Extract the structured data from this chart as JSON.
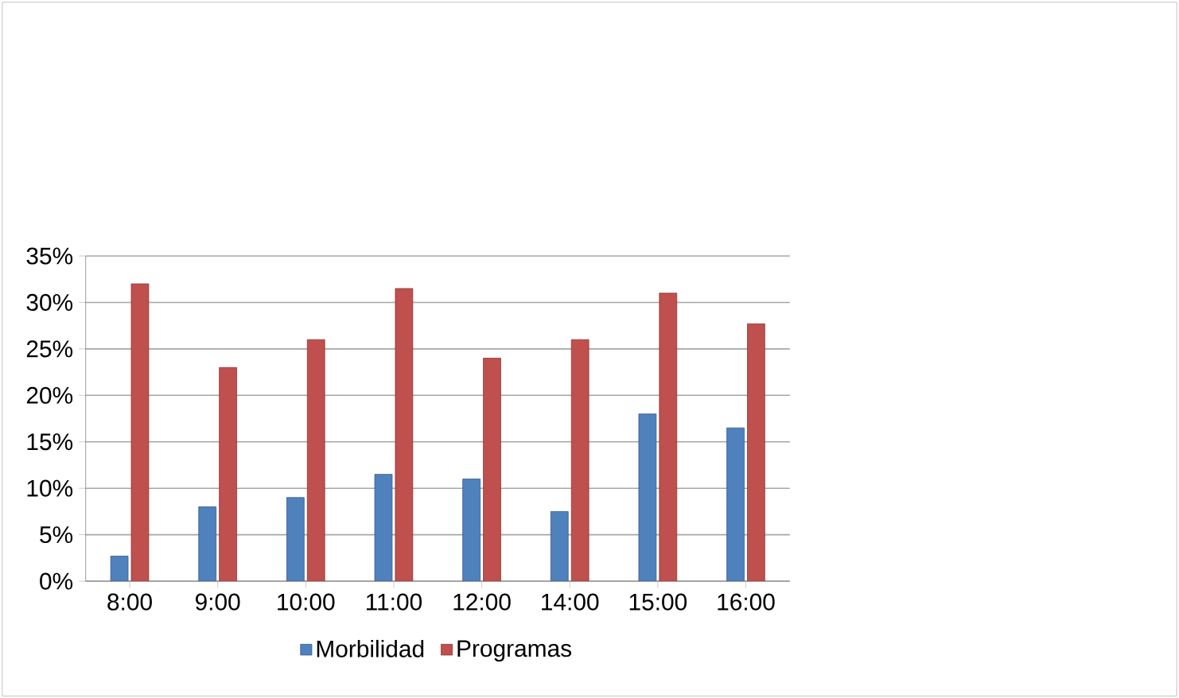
{
  "chart_data": {
    "type": "bar",
    "categories": [
      "8:00",
      "9:00",
      "10:00",
      "11:00",
      "12:00",
      "14:00",
      "15:00",
      "16:00"
    ],
    "series": [
      {
        "name": "Morbilidad",
        "color": "#4f81bd",
        "values": [
          2.7,
          8,
          9,
          11.5,
          11,
          7.5,
          18,
          16.5
        ]
      },
      {
        "name": "Programas",
        "color": "#c0504d",
        "values": [
          32,
          23,
          26,
          31.5,
          24,
          26,
          31,
          27.7
        ]
      }
    ],
    "ylim": [
      0,
      35
    ],
    "yticks": [
      {
        "value": 0,
        "label": "0%"
      },
      {
        "value": 5,
        "label": "5%"
      },
      {
        "value": 10,
        "label": "10%"
      },
      {
        "value": 15,
        "label": "15%"
      },
      {
        "value": 20,
        "label": "20%"
      },
      {
        "value": 25,
        "label": "25%"
      },
      {
        "value": 30,
        "label": "30%"
      },
      {
        "value": 35,
        "label": "35%"
      }
    ],
    "grid": "y",
    "legend": "bottom"
  }
}
